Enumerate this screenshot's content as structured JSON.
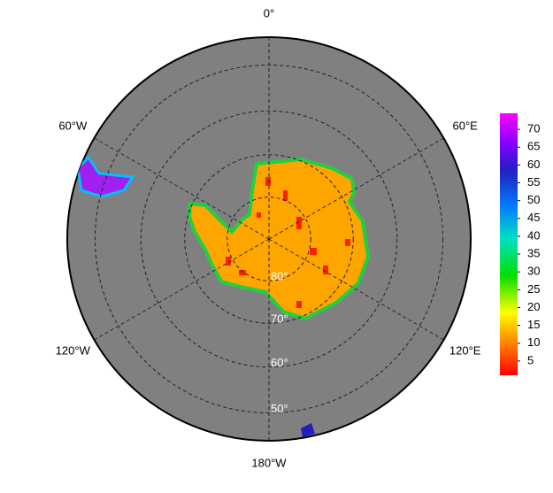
{
  "map": {
    "meridians": [
      {
        "value": 0,
        "label": "0°"
      },
      {
        "value": 60,
        "label": "60°E"
      },
      {
        "value": 120,
        "label": "120°E"
      },
      {
        "value": 180,
        "label": "180°W"
      },
      {
        "value": -120,
        "label": "120°W"
      },
      {
        "value": -60,
        "label": "60°W"
      }
    ],
    "parallels": [
      {
        "value": 80,
        "label": "80°"
      },
      {
        "value": 70,
        "label": "70°"
      },
      {
        "value": 60,
        "label": "60°"
      },
      {
        "value": 50,
        "label": "50°"
      }
    ]
  },
  "colorbar": {
    "lim": [
      1,
      74.5
    ],
    "ticks": [
      5,
      10,
      15,
      20,
      25,
      30,
      35,
      40,
      45,
      50,
      55,
      60,
      65,
      70
    ]
  }
}
